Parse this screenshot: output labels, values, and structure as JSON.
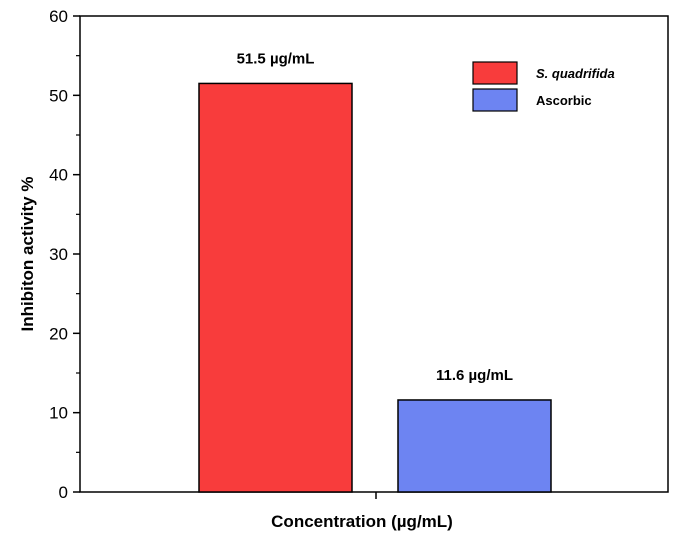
{
  "chart_data": {
    "type": "bar",
    "ylabel": "Inhibiton activity %",
    "xlabel": "Concentration (µg/mL)",
    "ylim": [
      0,
      60
    ],
    "yticks": [
      0,
      10,
      20,
      30,
      40,
      50,
      60
    ],
    "grid": false,
    "legend_position": "top-right",
    "series": [
      {
        "name": "S. quadrifida",
        "value": 51.5,
        "label": "51.5 µg/mL",
        "color": "#f83c3c",
        "name_italic": true
      },
      {
        "name": "Ascorbic",
        "value": 11.6,
        "label": "11.6 µg/mL",
        "color": "#6d84f2",
        "name_italic": false
      }
    ]
  }
}
